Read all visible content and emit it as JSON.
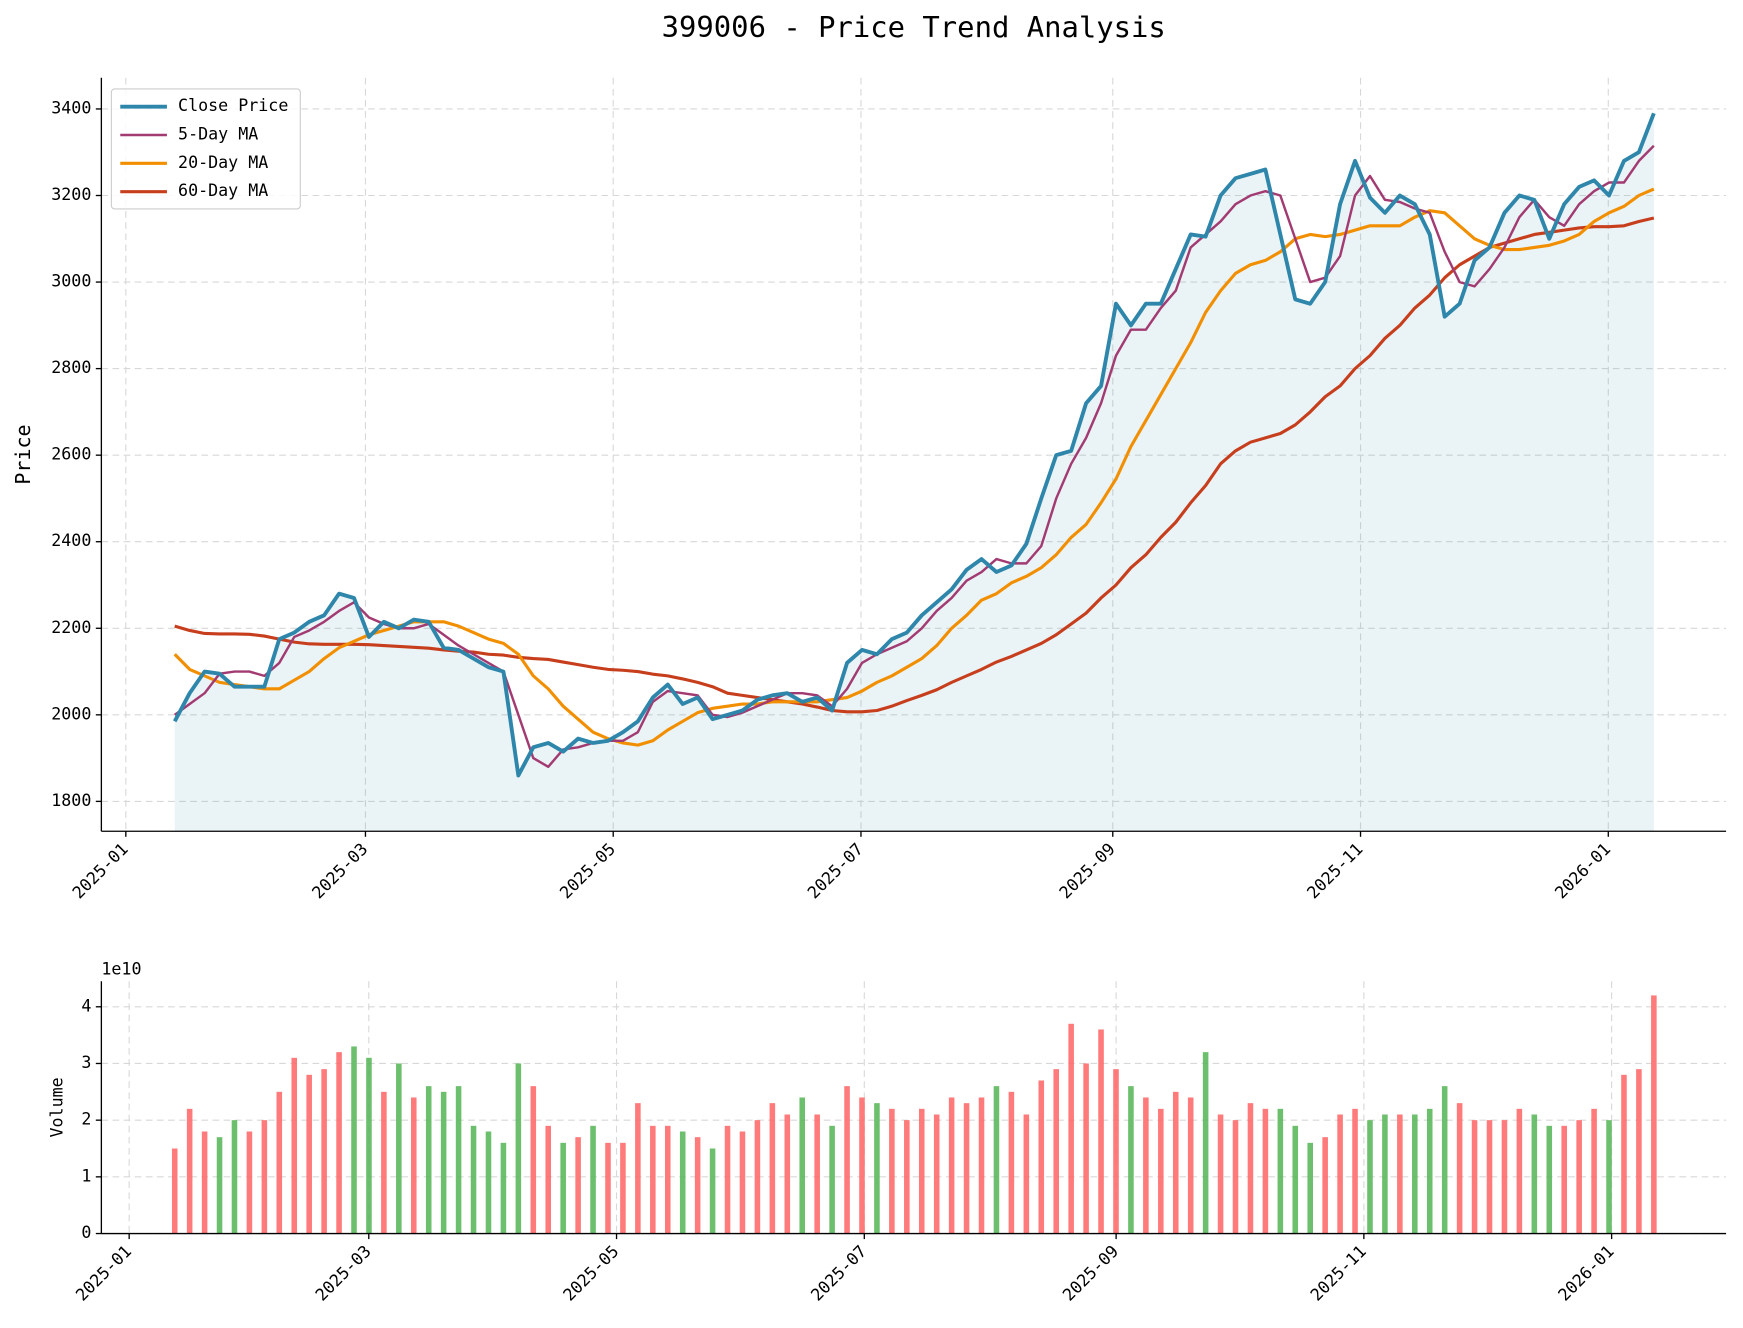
{
  "chart_data": [
    {
      "type": "line",
      "title": "399006 - Price Trend Analysis",
      "ylabel": "Price",
      "ylim": [
        1731,
        3472
      ],
      "yticks": [
        1800,
        2000,
        2200,
        2400,
        2600,
        2800,
        3000,
        3200,
        3400
      ],
      "xticks": [
        "2025-01",
        "2025-03",
        "2025-05",
        "2025-07",
        "2025-09",
        "2025-11",
        "2026-01"
      ],
      "grid": true,
      "legend": "upper left",
      "fill_color": "#2e86ab",
      "series": [
        {
          "name": "Close Price",
          "color": "#2e86ab",
          "values": [
            1985,
            2050,
            2100,
            2095,
            2065,
            2065,
            2065,
            2175,
            2190,
            2215,
            2230,
            2280,
            2270,
            2180,
            2215,
            2200,
            2220,
            2215,
            2155,
            2150,
            2130,
            2110,
            2100,
            1860,
            1925,
            1935,
            1915,
            1945,
            1935,
            1940,
            1960,
            1985,
            2040,
            2070,
            2025,
            2040,
            1990,
            2000,
            2010,
            2035,
            2045,
            2050,
            2030,
            2040,
            2010,
            2120,
            2150,
            2140,
            2175,
            2190,
            2230,
            2260,
            2290,
            2335,
            2360,
            2330,
            2345,
            2395,
            2500,
            2600,
            2610,
            2720,
            2760,
            2950,
            2900,
            2950,
            2950,
            3030,
            3110,
            3105,
            3200,
            3240,
            3250,
            3260,
            3110,
            2960,
            2950,
            3000,
            3180,
            3280,
            3195,
            3160,
            3200,
            3180,
            3110,
            2920,
            2950,
            3050,
            3080,
            3160,
            3200,
            3190,
            3100,
            3180,
            3220,
            3235,
            3200,
            3280,
            3300,
            3390
          ]
        },
        {
          "name": "5-Day MA",
          "color": "#a23b72",
          "values": [
            2000,
            2025,
            2050,
            2095,
            2100,
            2100,
            2090,
            2120,
            2180,
            2195,
            2215,
            2240,
            2260,
            2225,
            2210,
            2200,
            2200,
            2210,
            2185,
            2160,
            2140,
            2120,
            2100,
            2000,
            1900,
            1880,
            1920,
            1925,
            1935,
            1940,
            1940,
            1960,
            2030,
            2055,
            2050,
            2045,
            2000,
            1995,
            2005,
            2020,
            2035,
            2050,
            2050,
            2045,
            2020,
            2060,
            2120,
            2140,
            2155,
            2170,
            2200,
            2240,
            2270,
            2310,
            2330,
            2360,
            2350,
            2350,
            2390,
            2500,
            2580,
            2640,
            2720,
            2830,
            2890,
            2890,
            2940,
            2980,
            3080,
            3110,
            3140,
            3180,
            3200,
            3210,
            3200,
            3100,
            3000,
            3010,
            3060,
            3200,
            3245,
            3190,
            3185,
            3170,
            3160,
            3070,
            3000,
            2990,
            3030,
            3080,
            3150,
            3190,
            3150,
            3130,
            3180,
            3210,
            3230,
            3230,
            3280,
            3315
          ]
        },
        {
          "name": "20-Day MA",
          "color": "#f18f01",
          "values": [
            2140,
            2105,
            2090,
            2075,
            2070,
            2065,
            2060,
            2060,
            2080,
            2100,
            2130,
            2155,
            2170,
            2185,
            2195,
            2205,
            2215,
            2215,
            2215,
            2205,
            2190,
            2175,
            2165,
            2140,
            2090,
            2060,
            2020,
            1990,
            1960,
            1945,
            1935,
            1930,
            1940,
            1965,
            1985,
            2005,
            2015,
            2020,
            2025,
            2025,
            2030,
            2030,
            2030,
            2030,
            2035,
            2040,
            2055,
            2075,
            2090,
            2110,
            2130,
            2160,
            2200,
            2230,
            2265,
            2280,
            2305,
            2320,
            2340,
            2370,
            2410,
            2440,
            2490,
            2545,
            2620,
            2680,
            2740,
            2800,
            2860,
            2930,
            2980,
            3020,
            3040,
            3050,
            3070,
            3100,
            3110,
            3105,
            3110,
            3120,
            3130,
            3130,
            3130,
            3150,
            3165,
            3160,
            3130,
            3100,
            3085,
            3075,
            3075,
            3080,
            3085,
            3095,
            3110,
            3140,
            3160,
            3175,
            3200,
            3215
          ]
        },
        {
          "name": "60-Day MA",
          "color": "#c73e1d",
          "values": [
            2205,
            2195,
            2188,
            2187,
            2187,
            2186,
            2182,
            2175,
            2168,
            2164,
            2163,
            2163,
            2163,
            2162,
            2160,
            2158,
            2156,
            2154,
            2150,
            2147,
            2145,
            2140,
            2138,
            2133,
            2130,
            2128,
            2122,
            2116,
            2110,
            2105,
            2103,
            2100,
            2094,
            2090,
            2083,
            2075,
            2065,
            2050,
            2045,
            2040,
            2035,
            2030,
            2025,
            2018,
            2010,
            2007,
            2007,
            2010,
            2020,
            2033,
            2045,
            2058,
            2075,
            2090,
            2105,
            2122,
            2135,
            2150,
            2165,
            2185,
            2210,
            2235,
            2270,
            2300,
            2340,
            2370,
            2410,
            2445,
            2490,
            2530,
            2580,
            2610,
            2630,
            2640,
            2650,
            2670,
            2700,
            2735,
            2760,
            2800,
            2830,
            2870,
            2900,
            2940,
            2970,
            3010,
            3040,
            3060,
            3080,
            3090,
            3100,
            3110,
            3115,
            3120,
            3125,
            3128,
            3128,
            3130,
            3140,
            3148
          ]
        }
      ]
    },
    {
      "type": "bar",
      "ylabel": "Volume",
      "offset_label": "1e10",
      "ylim": [
        0,
        4.45
      ],
      "yticks": [
        0,
        1,
        2,
        3,
        4
      ],
      "xticks": [
        "2025-01",
        "2025-03",
        "2025-05",
        "2025-07",
        "2025-09",
        "2025-11",
        "2026-01"
      ],
      "grid": true,
      "up_color": "#ff6b6b",
      "down_color": "#5cb85c",
      "values": [
        1.5,
        2.2,
        1.8,
        1.7,
        2.0,
        1.8,
        2.0,
        2.5,
        3.1,
        2.8,
        2.9,
        3.2,
        3.3,
        3.1,
        2.5,
        3.0,
        2.4,
        2.6,
        2.5,
        2.6,
        1.9,
        1.8,
        1.6,
        3.0,
        2.6,
        1.9,
        1.6,
        1.7,
        1.9,
        1.6,
        1.6,
        2.3,
        1.9,
        1.9,
        1.8,
        1.7,
        1.5,
        1.9,
        1.8,
        2.0,
        2.3,
        2.1,
        2.4,
        2.1,
        1.9,
        2.6,
        2.4,
        2.3,
        2.2,
        2.0,
        2.2,
        2.1,
        2.4,
        2.3,
        2.4,
        2.6,
        2.5,
        2.1,
        2.7,
        2.9,
        3.7,
        3.0,
        3.6,
        2.9,
        2.6,
        2.4,
        2.2,
        2.5,
        2.4,
        3.2,
        2.1,
        2.0,
        2.3,
        2.2,
        2.2,
        1.9,
        1.6,
        1.7,
        2.1,
        2.2,
        2.0,
        2.1,
        2.1,
        2.1,
        2.2,
        2.6,
        2.3,
        2.0,
        2.0,
        2.0,
        2.2,
        2.1,
        1.9,
        1.9,
        2.0,
        2.2,
        2.0,
        2.8,
        2.9,
        4.2
      ]
    }
  ]
}
